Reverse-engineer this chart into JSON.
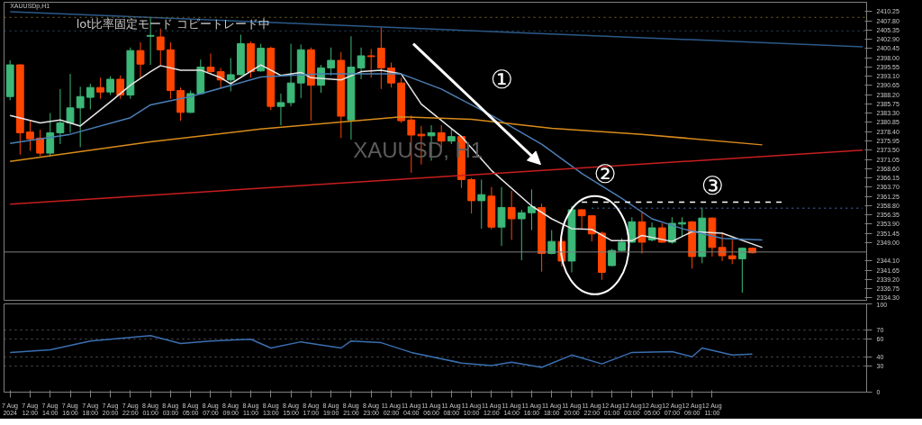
{
  "chart_data": [
    {
      "type": "candlestick",
      "tick_labels": "y",
      "ylim": [
        2333.7,
        2412.7
      ],
      "yticks": [
        {
          "value": 2334.3,
          "label": "2334.30"
        },
        {
          "value": 2336.75,
          "label": "2336.75"
        },
        {
          "value": 2339.2,
          "label": "2339.20"
        },
        {
          "value": 2341.65,
          "label": "2341.65"
        },
        {
          "value": 2344.1,
          "label": "2344.10"
        },
        {
          "value": 2349.0,
          "label": "2349.00"
        },
        {
          "value": 2351.45,
          "label": "2351.45"
        },
        {
          "value": 2353.9,
          "label": "2353.90"
        },
        {
          "value": 2356.35,
          "label": "2356.35"
        },
        {
          "value": 2358.8,
          "label": "2358.80"
        },
        {
          "value": 2361.25,
          "label": "2361.25"
        },
        {
          "value": 2363.7,
          "label": "2363.70"
        },
        {
          "value": 2366.15,
          "label": "2366.15"
        },
        {
          "value": 2368.6,
          "label": "2368.60"
        },
        {
          "value": 2371.05,
          "label": "2371.05"
        },
        {
          "value": 2373.5,
          "label": "2373.50"
        },
        {
          "value": 2375.95,
          "label": "2375.95"
        },
        {
          "value": 2378.4,
          "label": "2378.40"
        },
        {
          "value": 2380.85,
          "label": "2380.85"
        },
        {
          "value": 2383.3,
          "label": "2383.30"
        },
        {
          "value": 2385.75,
          "label": "2385.75"
        },
        {
          "value": 2388.2,
          "label": "2388.20"
        },
        {
          "value": 2390.65,
          "label": "2390.65"
        },
        {
          "value": 2393.1,
          "label": "2393.10"
        },
        {
          "value": 2395.55,
          "label": "2395.55"
        },
        {
          "value": 2398.0,
          "label": "2398.00"
        },
        {
          "value": 2400.45,
          "label": "2400.45"
        },
        {
          "value": 2402.9,
          "label": "2402.90"
        },
        {
          "value": 2405.35,
          "label": "2405.35"
        },
        {
          "value": 2407.8,
          "label": "2407.80"
        },
        {
          "value": 2410.25,
          "label": "2410.25"
        }
      ],
      "categories": [
        null,
        null,
        null,
        null,
        null,
        null,
        null,
        null,
        null,
        null,
        null,
        null,
        null,
        null,
        null,
        null,
        null,
        null,
        null,
        null,
        null,
        null,
        null,
        null,
        null,
        null,
        null,
        null,
        null,
        null,
        null,
        null,
        null,
        null,
        null,
        null,
        null,
        null,
        null,
        null,
        null,
        null,
        null,
        null,
        null,
        null,
        null,
        null,
        null,
        null,
        null,
        null,
        null,
        null,
        null,
        null,
        null,
        null,
        null,
        null,
        null,
        null,
        null,
        null,
        null,
        null,
        null,
        null,
        null,
        null,
        null,
        null,
        null,
        null,
        null,
        null,
        null,
        null,
        null,
        null,
        null,
        null,
        null,
        null,
        null,
        null
      ],
      "ohlc": [
        [
          2387.7,
          2397.3,
          2386.7,
          2396.1
        ],
        [
          2396.1,
          2396.3,
          2372.3,
          2378.1
        ],
        [
          2378.3,
          2381.5,
          2373.3,
          2376.5
        ],
        [
          2376.7,
          2378.9,
          2371.9,
          2372.7
        ],
        [
          2372.7,
          2383.3,
          2371.9,
          2378.1
        ],
        [
          2378.1,
          2389.7,
          2375.1,
          2380.7
        ],
        [
          2380.7,
          2393.7,
          2378.1,
          2384.7
        ],
        [
          2384.7,
          2390.3,
          2374.3,
          2387.7
        ],
        [
          2387.5,
          2391.1,
          2384.3,
          2390.1
        ],
        [
          2390.1,
          2392.7,
          2387.1,
          2388.9
        ],
        [
          2388.9,
          2393.1,
          2388.1,
          2392.3
        ],
        [
          2392.3,
          2393.3,
          2387.1,
          2388.1
        ],
        [
          2388.1,
          2400.7,
          2387.1,
          2399.9
        ],
        [
          2399.9,
          2402.1,
          2392.7,
          2396.3
        ],
        [
          2403.7,
          2408.7,
          2396.1,
          2403.9
        ],
        [
          2403.5,
          2405.7,
          2396.1,
          2400.1
        ],
        [
          2400.1,
          2402.1,
          2387.1,
          2389.3
        ],
        [
          2389.3,
          2390.1,
          2381.3,
          2383.5
        ],
        [
          2383.5,
          2389.3,
          2383.3,
          2388.5
        ],
        [
          2388.5,
          2397.5,
          2388.3,
          2395.5
        ],
        [
          2395.5,
          2399.1,
          2393.9,
          2394.3
        ],
        [
          2394.3,
          2395.3,
          2390.1,
          2392.1
        ],
        [
          2392.1,
          2397.9,
          2389.1,
          2393.5
        ],
        [
          2393.5,
          2404.1,
          2393.3,
          2401.7
        ],
        [
          2401.7,
          2402.3,
          2392.7,
          2394.3
        ],
        [
          2394.5,
          2401.7,
          2394.3,
          2400.5
        ],
        [
          2400.5,
          2400.9,
          2384.1,
          2385.1
        ],
        [
          2385.1,
          2388.5,
          2380.1,
          2386.1
        ],
        [
          2386.1,
          2401.7,
          2385.1,
          2391.3
        ],
        [
          2391.3,
          2401.5,
          2387.3,
          2400.1
        ],
        [
          2400.1,
          2400.7,
          2381.3,
          2390.7
        ],
        [
          2390.7,
          2396.1,
          2388.7,
          2395.3
        ],
        [
          2395.3,
          2400.7,
          2393.3,
          2397.3
        ],
        [
          2397.3,
          2399.5,
          2376.7,
          2382.5
        ],
        [
          2381.5,
          2403.7,
          2376.3,
          2395.5
        ],
        [
          2395.3,
          2400.7,
          2392.3,
          2398.5
        ],
        [
          2398.5,
          2400.3,
          2392.7,
          2398.3
        ],
        [
          2400.5,
          2406.1,
          2389.7,
          2395.3
        ],
        [
          2395.3,
          2396.7,
          2390.1,
          2391.3
        ],
        [
          2391.3,
          2392.7,
          2380.7,
          2381.3
        ],
        [
          2381.5,
          2382.7,
          2367.5,
          2377.5
        ],
        [
          2377.7,
          2379.9,
          2369.7,
          2377.3
        ],
        [
          2377.3,
          2380.1,
          2370.7,
          2378.1
        ],
        [
          2378.1,
          2380.1,
          2374.1,
          2375.9
        ],
        [
          2375.9,
          2379.3,
          2375.1,
          2377.1
        ],
        [
          2377.1,
          2377.3,
          2363.5,
          2365.7
        ],
        [
          2365.7,
          2366.1,
          2356.7,
          2360.1
        ],
        [
          2360.1,
          2365.7,
          2352.7,
          2361.7
        ],
        [
          2361.3,
          2363.7,
          2352.5,
          2353.1
        ],
        [
          2353.1,
          2363.7,
          2348.1,
          2358.3
        ],
        [
          2358.3,
          2362.7,
          2349.7,
          2355.3
        ],
        [
          2355.3,
          2357.7,
          2344.3,
          2356.9
        ],
        [
          2356.9,
          2363.1,
          2352.3,
          2358.5
        ],
        [
          2358.3,
          2359.3,
          2341.3,
          2346.1
        ],
        [
          2346.1,
          2352.3,
          2345.9,
          2349.3
        ],
        [
          2349.3,
          2350.3,
          2342.7,
          2344.1
        ],
        [
          2344.1,
          2358.7,
          2341.1,
          2357.7
        ],
        [
          2357.7,
          2357.9,
          2352.7,
          2356.1
        ],
        [
          2356.1,
          2356.3,
          2349.3,
          2351.3
        ],
        [
          2351.5,
          2351.9,
          2339.1,
          2341.1
        ],
        [
          2342.9,
          2347.3,
          2342.7,
          2346.9
        ],
        [
          2346.9,
          2350.1,
          2346.7,
          2349.1
        ],
        [
          2349.1,
          2355.7,
          2348.9,
          2354.5
        ],
        [
          2354.5,
          2357.3,
          2346.1,
          2349.1
        ],
        [
          2349.7,
          2354.3,
          2349.3,
          2352.9
        ],
        [
          2352.9,
          2354.1,
          2348.9,
          2349.1
        ],
        [
          2349.1,
          2355.7,
          2348.7,
          2354.1
        ],
        [
          2353.9,
          2355.7,
          2350.7,
          2354.3
        ],
        [
          2354.5,
          2354.7,
          2342.1,
          2345.3
        ],
        [
          2345.3,
          2358.3,
          2343.5,
          2355.5
        ],
        [
          2355.5,
          2355.7,
          2345.3,
          2347.7
        ],
        [
          2347.7,
          2351.7,
          2344.1,
          2345.5
        ],
        [
          2345.5,
          2349.7,
          2343.3,
          2344.7
        ],
        [
          2344.7,
          2347.7,
          2335.7,
          2347.5
        ],
        [
          2347.5,
          2347.7,
          2346.1,
          2346.3
        ],
        null,
        null,
        null,
        null,
        null,
        null,
        null,
        null,
        null,
        null,
        null
      ],
      "colors": [
        "#3cb878",
        "#ff4500",
        "#ff4500",
        "#ff4500",
        "#3cb878",
        "#3cb878",
        "#3cb878",
        "#3cb878",
        "#3cb878",
        "#ff4500",
        "#3cb878",
        "#ff4500",
        "#3cb878",
        "#ff4500",
        "#3cb878",
        "#ff4500",
        "#ff4500",
        "#ff4500",
        "#3cb878",
        "#3cb878",
        "#ff4500",
        "#ff4500",
        "#3cb878",
        "#3cb878",
        "#ff4500",
        "#3cb878",
        "#ff4500",
        "#3cb878",
        "#3cb878",
        "#3cb878",
        "#ff4500",
        "#3cb878",
        "#3cb878",
        "#ff4500",
        "#3cb878",
        "#3cb878",
        "#ff4500",
        "#ff4500",
        "#ff4500",
        "#ff4500",
        "#ff4500",
        "#ff4500",
        "#3cb878",
        "#ff4500",
        "#3cb878",
        "#ff4500",
        "#ff4500",
        "#3cb878",
        "#ff4500",
        "#3cb878",
        "#ff4500",
        "#3cb878",
        "#3cb878",
        "#ff4500",
        "#3cb878",
        "#ff4500",
        "#3cb878",
        "#ff4500",
        "#ff4500",
        "#ff4500",
        "#3cb878",
        "#3cb878",
        "#3cb878",
        "#ff4500",
        "#3cb878",
        "#ff4500",
        "#3cb878",
        "#3cb878",
        "#ff4500",
        "#3cb878",
        "#ff4500",
        "#ff4500",
        "#ff4500",
        "#3cb878",
        "#ff4500",
        null,
        null,
        null,
        null,
        null,
        null,
        null,
        null,
        null,
        null,
        null
      ],
      "series": [
        {
          "type": "line",
          "color": "#e6e6e6",
          "line_style": "solid",
          "values": [
            2382.7,
            null,
            null,
            2380.7,
            null,
            2381.5,
            null,
            2379.9,
            null,
            null,
            2386.3,
            null,
            2390.7,
            null,
            2394.3,
            2395.9,
            null,
            2394.7,
            null,
            2394.7,
            null,
            2392.7,
            2391.1,
            null,
            null,
            2396.1,
            null,
            2393.3,
            null,
            2394.1,
            2392.7,
            null,
            null,
            2392.1,
            null,
            2394.3,
            null,
            2394.7,
            null,
            2393.7,
            null,
            2385.7,
            null,
            null,
            null,
            2377.1,
            null,
            null,
            2368.1,
            null,
            null,
            null,
            2358.7,
            null,
            2355.3,
            null,
            2352.7,
            null,
            2352.5,
            null,
            2349.5,
            null,
            2349.5,
            2350.9,
            null,
            null,
            2349.3,
            null,
            2351.9,
            null,
            null,
            2351.5,
            null,
            null,
            null,
            2347.7,
            null,
            null,
            null,
            null,
            null,
            null,
            null,
            null,
            null,
            null
          ]
        },
        {
          "type": "line",
          "color": "#4a7fb5",
          "line_style": "solid",
          "values": [
            2375.3,
            null,
            null,
            null,
            null,
            null,
            2377.7,
            null,
            null,
            null,
            null,
            null,
            2382.1,
            null,
            2385.5,
            null,
            null,
            null,
            2387.7,
            null,
            null,
            null,
            null,
            null,
            null,
            2392.9,
            null,
            null,
            null,
            null,
            null,
            2393.7,
            null,
            null,
            null,
            null,
            null,
            null,
            null,
            2393.7,
            null,
            null,
            null,
            2389.7,
            null,
            null,
            null,
            null,
            2382.7,
            null,
            null,
            null,
            null,
            2375.1,
            null,
            null,
            null,
            2367.3,
            null,
            null,
            null,
            2360.7,
            null,
            null,
            2355.3,
            null,
            null,
            2352.7,
            null,
            null,
            null,
            2350.1,
            null,
            null,
            null,
            2349.7,
            null,
            null,
            null,
            null,
            null,
            null,
            null,
            null,
            null,
            null
          ]
        },
        {
          "type": "line",
          "color": "#d98c1a",
          "line_style": "solid",
          "values": [
            2370.5,
            null,
            null,
            null,
            null,
            null,
            null,
            null,
            null,
            null,
            null,
            null,
            null,
            null,
            2375.7,
            null,
            null,
            null,
            null,
            null,
            null,
            null,
            null,
            null,
            null,
            2379.1,
            null,
            null,
            null,
            null,
            null,
            null,
            null,
            null,
            null,
            null,
            null,
            null,
            null,
            2382.3,
            null,
            null,
            null,
            null,
            null,
            null,
            2381.7,
            null,
            null,
            null,
            null,
            null,
            null,
            null,
            2379.3,
            null,
            null,
            null,
            null,
            null,
            null,
            null,
            null,
            2377.7,
            null,
            null,
            null,
            null,
            null,
            null,
            null,
            null,
            null,
            null,
            null,
            2374.9,
            null,
            null,
            null,
            null,
            null,
            null,
            null,
            null,
            null,
            null
          ]
        },
        {
          "type": "line",
          "color": "#c81e1e",
          "line_style": "solid",
          "values": [
            2359.2,
            null,
            null,
            null,
            null,
            null,
            null,
            null,
            null,
            null,
            null,
            null,
            null,
            null,
            null,
            null,
            null,
            null,
            null,
            null,
            null,
            null,
            null,
            null,
            null,
            null,
            null,
            null,
            null,
            null,
            null,
            null,
            null,
            null,
            null,
            null,
            null,
            null,
            null,
            null,
            null,
            null,
            null,
            null,
            null,
            null,
            null,
            null,
            null,
            null,
            null,
            null,
            null,
            null,
            null,
            null,
            null,
            null,
            null,
            null,
            null,
            null,
            null,
            null,
            null,
            null,
            null,
            null,
            null,
            null,
            null,
            null,
            null,
            null,
            null,
            null,
            null,
            null,
            null,
            null,
            null,
            null,
            null,
            null,
            null,
            2373.5
          ]
        },
        {
          "type": "line",
          "color": "#2b5a8a",
          "line_style": "solid",
          "values": [
            2410.2,
            null,
            null,
            null,
            null,
            null,
            null,
            null,
            null,
            null,
            null,
            null,
            null,
            null,
            null,
            null,
            null,
            null,
            null,
            null,
            null,
            null,
            null,
            null,
            null,
            null,
            null,
            null,
            null,
            null,
            null,
            null,
            null,
            null,
            null,
            null,
            null,
            null,
            null,
            null,
            null,
            null,
            null,
            null,
            null,
            null,
            null,
            null,
            null,
            null,
            null,
            null,
            null,
            null,
            null,
            null,
            null,
            null,
            null,
            null,
            null,
            null,
            null,
            null,
            null,
            null,
            null,
            null,
            null,
            null,
            null,
            null,
            null,
            null,
            null,
            null,
            null,
            null,
            null,
            null,
            null,
            null,
            null,
            null,
            null,
            2400.9
          ]
        },
        {
          "type": "line",
          "color": "#ffffff",
          "line_style": "dashed",
          "values": [
            null,
            null,
            null,
            null,
            null,
            null,
            null,
            null,
            null,
            null,
            null,
            null,
            null,
            null,
            null,
            null,
            null,
            null,
            null,
            null,
            null,
            null,
            null,
            null,
            null,
            null,
            null,
            null,
            null,
            null,
            null,
            null,
            null,
            null,
            null,
            null,
            null,
            null,
            null,
            null,
            null,
            null,
            null,
            null,
            null,
            null,
            null,
            null,
            null,
            null,
            null,
            null,
            null,
            null,
            null,
            null,
            null,
            2359.7,
            null,
            null,
            null,
            null,
            null,
            null,
            null,
            null,
            null,
            null,
            null,
            null,
            null,
            null,
            null,
            null,
            null,
            null,
            null,
            2359.7,
            null,
            null,
            null,
            null,
            null,
            null,
            null,
            null
          ]
        },
        {
          "type": "line",
          "color": "#2f4f7f",
          "line_style": "dotted",
          "values": [
            null,
            null,
            null,
            null,
            null,
            null,
            null,
            null,
            null,
            null,
            null,
            null,
            null,
            null,
            null,
            null,
            null,
            null,
            null,
            null,
            null,
            null,
            null,
            null,
            null,
            null,
            null,
            null,
            null,
            null,
            null,
            null,
            null,
            null,
            null,
            null,
            null,
            null,
            null,
            null,
            null,
            null,
            null,
            null,
            null,
            null,
            null,
            null,
            null,
            null,
            null,
            null,
            null,
            null,
            null,
            null,
            null,
            null,
            2358.1,
            null,
            null,
            null,
            null,
            null,
            null,
            null,
            null,
            null,
            null,
            null,
            null,
            null,
            null,
            null,
            null,
            null,
            null,
            null,
            null,
            null,
            null,
            null,
            null,
            null,
            null,
            2358.1
          ]
        }
      ],
      "ref_lines": [
        {
          "axis": "y",
          "value": 2346.5,
          "color": "#808080",
          "line_style": "solid"
        },
        {
          "axis": "y",
          "value": 2408.7,
          "color": "#7a6a1e",
          "line_style": "dotted"
        },
        {
          "axis": "y",
          "value": 2405.1,
          "color": "#2a4a6a",
          "line_style": "dotted"
        }
      ],
      "annotations": [
        "①",
        "②",
        "③",
        "XAUUSD, H1",
        "XAUUSDp,H1",
        "lot比率固定モード コピートレード中"
      ]
    },
    {
      "type": "line",
      "ylim": [
        0,
        100
      ],
      "yticks": [
        0,
        30,
        40,
        60,
        70,
        100
      ],
      "tick_labels": true,
      "categories": [
        "7 Aug 2024",
        null,
        "7 Aug 12:00",
        null,
        "7 Aug 14:00",
        null,
        "7 Aug 16:00",
        null,
        "7 Aug 18:00",
        null,
        "7 Aug 20:00",
        null,
        "7 Aug 22:00",
        null,
        "8 Aug 01:00",
        null,
        "8 Aug 03:00",
        null,
        "8 Aug 05:00",
        null,
        "8 Aug 07:00",
        null,
        "8 Aug 09:00",
        null,
        "8 Aug 11:00",
        null,
        "8 Aug 13:00",
        null,
        "8 Aug 15:00",
        null,
        "8 Aug 17:00",
        null,
        "8 Aug 19:00",
        null,
        "8 Aug 21:00",
        null,
        "8 Aug 23:00",
        null,
        "11 Aug 02:00",
        null,
        "11 Aug 04:00",
        null,
        "11 Aug 06:00",
        null,
        "11 Aug 08:00",
        null,
        "11 Aug 10:00",
        null,
        "11 Aug 12:00",
        null,
        "11 Aug 14:00",
        null,
        "11 Aug 16:00",
        null,
        "11 Aug 18:00",
        null,
        "11 Aug 20:00",
        null,
        "11 Aug 22:00",
        null,
        "12 Aug 01:00",
        null,
        "12 Aug 03:00",
        null,
        "12 Aug 05:00",
        null,
        "12 Aug 07:00",
        null,
        "12 Aug 09:00",
        null,
        "12 Aug 11:00",
        null,
        null,
        null,
        null,
        null,
        null,
        null,
        null,
        null,
        null,
        null,
        null,
        null,
        null,
        null
      ],
      "series": [
        {
          "color": "#3a6fb0",
          "line_style": "solid",
          "values": [
            45,
            null,
            null,
            null,
            48,
            null,
            null,
            null,
            58,
            null,
            null,
            null,
            62,
            null,
            64,
            null,
            null,
            55,
            null,
            null,
            58,
            null,
            null,
            null,
            60,
            null,
            50,
            null,
            null,
            57,
            null,
            null,
            null,
            50,
            58,
            null,
            null,
            56,
            null,
            null,
            45,
            null,
            null,
            null,
            null,
            33,
            null,
            null,
            30,
            null,
            34,
            null,
            null,
            28,
            null,
            null,
            42,
            null,
            null,
            32,
            null,
            null,
            45,
            null,
            null,
            null,
            46,
            null,
            40,
            50,
            null,
            null,
            42,
            null,
            43,
            null,
            null,
            null,
            null,
            null,
            null,
            null,
            null,
            null,
            null,
            null
          ]
        }
      ],
      "grid": "y"
    }
  ]
}
